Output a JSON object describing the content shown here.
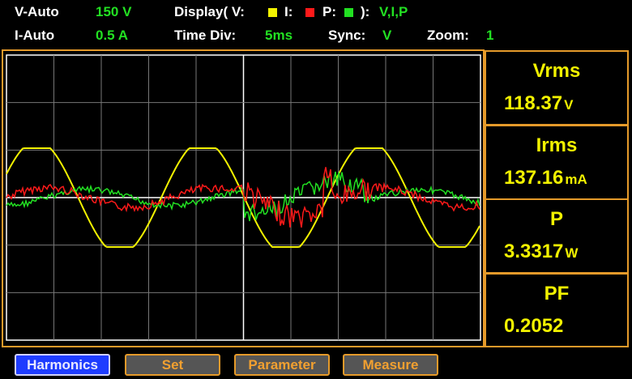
{
  "header": {
    "row1": {
      "v_range_label": "V-Auto",
      "v_range_value": "150 V",
      "display_label": "Display( V:",
      "display_i": "I:",
      "display_p": "P:",
      "display_close": "):",
      "display_value": "V,I,P"
    },
    "row2": {
      "i_range_label": "I-Auto",
      "i_range_value": "0.5 A",
      "time_div_label": "Time  Div:",
      "time_div_value": "5ms",
      "sync_label": "Sync:",
      "sync_value": "V",
      "zoom_label": "Zoom:",
      "zoom_value": "1"
    }
  },
  "readings": [
    {
      "label": "Vrms",
      "value": "118.37",
      "unit": "V"
    },
    {
      "label": "Irms",
      "value": "137.16",
      "unit": "mA"
    },
    {
      "label": "P",
      "value": "3.3317",
      "unit": "W"
    },
    {
      "label": "PF",
      "value": "0.2052"
    }
  ],
  "buttons": [
    "Harmonics",
    "Set",
    "Parameter",
    "Measure"
  ]
}
